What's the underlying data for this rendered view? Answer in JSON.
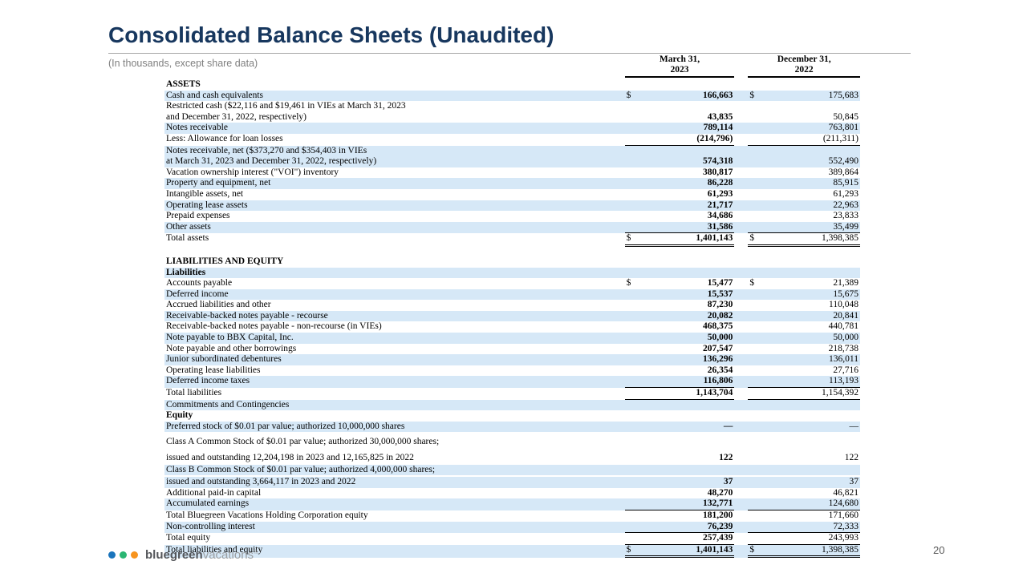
{
  "page": {
    "title": "Consolidated Balance Sheets (Unaudited)",
    "subtitle": "(In thousands, except share data)",
    "page_number": "20"
  },
  "columns": [
    {
      "line1": "March 31,",
      "line2": "2023"
    },
    {
      "line1": "December 31,",
      "line2": "2022"
    }
  ],
  "colors": {
    "title_accent": "#17375e",
    "row_shade": "#d6e8f7",
    "logo_dots": [
      "#1b75bc",
      "#2bb673",
      "#f7941e"
    ]
  },
  "footer": {
    "logo_text_bold": "bluegreen",
    "logo_text_light": "vacations",
    "logo_reg": "®"
  },
  "table": {
    "rows": [
      {
        "type": "sec",
        "label": "ASSETS",
        "shade": false
      },
      {
        "type": "row",
        "label": "Cash and cash equivalents",
        "v1": "166,663",
        "d1": true,
        "v2": "175,683",
        "d2": true,
        "shade": true
      },
      {
        "type": "cont",
        "label": "Restricted cash ($22,116 and $19,461 in VIEs at March 31, 2023",
        "shade": false
      },
      {
        "type": "row",
        "label": "and December 31, 2022, respectively)",
        "v1": "43,835",
        "v2": "50,845",
        "shade": false
      },
      {
        "type": "row",
        "label": "Notes receivable",
        "v1": "789,114",
        "v2": "763,801",
        "shade": true
      },
      {
        "type": "row",
        "label": "Less: Allowance for loan losses",
        "v1": "(214,796)",
        "v2": "(211,311)",
        "shade": false,
        "u": "s"
      },
      {
        "type": "cont",
        "label": "Notes receivable, net ($373,270 and $354,403 in VIEs",
        "shade": true
      },
      {
        "type": "row",
        "label": "at March 31, 2023 and December 31, 2022, respectively)",
        "v1": "574,318",
        "v2": "552,490",
        "shade": true
      },
      {
        "type": "row",
        "label": "Vacation ownership interest (\"VOI\") inventory",
        "v1": "380,817",
        "v2": "389,864",
        "shade": false
      },
      {
        "type": "row",
        "label": "Property and equipment, net",
        "v1": "86,228",
        "v2": "85,915",
        "shade": true
      },
      {
        "type": "row",
        "label": "Intangible assets, net",
        "v1": "61,293",
        "v2": "61,293",
        "shade": false
      },
      {
        "type": "row",
        "label": "Operating lease assets",
        "v1": "21,717",
        "v2": "22,963",
        "shade": true
      },
      {
        "type": "row",
        "label": "Prepaid expenses",
        "v1": "34,686",
        "v2": "23,833",
        "shade": false
      },
      {
        "type": "row",
        "label": "Other assets",
        "v1": "31,586",
        "v2": "35,499",
        "shade": true,
        "u": "s"
      },
      {
        "type": "row",
        "label": "Total assets",
        "v1": "1,401,143",
        "d1": true,
        "v2": "1,398,385",
        "d2": true,
        "shade": false,
        "u": "d"
      },
      {
        "type": "gap"
      },
      {
        "type": "sec",
        "label": "LIABILITIES AND EQUITY",
        "shade": false
      },
      {
        "type": "sec",
        "label": "Liabilities",
        "shade": true
      },
      {
        "type": "row",
        "label": "Accounts payable",
        "v1": "15,477",
        "d1": true,
        "v2": "21,389",
        "d2": true,
        "shade": false
      },
      {
        "type": "row",
        "label": "Deferred income",
        "v1": "15,537",
        "v2": "15,675",
        "shade": true
      },
      {
        "type": "row",
        "label": "Accrued liabilities and other",
        "v1": "87,230",
        "v2": "110,048",
        "shade": false
      },
      {
        "type": "row",
        "label": "Receivable-backed notes payable - recourse",
        "v1": "20,082",
        "v2": "20,841",
        "shade": true
      },
      {
        "type": "row",
        "label": "Receivable-backed notes payable - non-recourse (in VIEs)",
        "v1": "468,375",
        "v2": "440,781",
        "shade": false
      },
      {
        "type": "row",
        "label": "Note payable to BBX Capital, Inc.",
        "v1": "50,000",
        "v2": "50,000",
        "shade": true
      },
      {
        "type": "row",
        "label": "Note payable and other borrowings",
        "v1": "207,547",
        "v2": "218,738",
        "shade": false
      },
      {
        "type": "row",
        "label": "Junior subordinated debentures",
        "v1": "136,296",
        "v2": "136,011",
        "shade": true
      },
      {
        "type": "row",
        "label": "Operating lease liabilities",
        "v1": "26,354",
        "v2": "27,716",
        "shade": false
      },
      {
        "type": "row",
        "label": "Deferred income taxes",
        "v1": "116,806",
        "v2": "113,193",
        "shade": true,
        "u": "s"
      },
      {
        "type": "row",
        "label": "Total liabilities",
        "v1": "1,143,704",
        "v2": "1,154,392",
        "shade": false,
        "u": "s"
      },
      {
        "type": "row",
        "label": "Commitments and Contingencies",
        "shade": true
      },
      {
        "type": "sec",
        "label": "Equity",
        "shade": false
      },
      {
        "type": "row",
        "label": "Preferred stock of $0.01 par value; authorized 10,000,000 shares",
        "v1": "—",
        "v2": "—",
        "shade": true
      },
      {
        "type": "cont",
        "label": "Class A Common Stock of $0.01 par value; authorized 30,000,000 shares;",
        "shade": false,
        "mt": 6
      },
      {
        "type": "row",
        "label": "issued and outstanding 12,204,198 in 2023 and 12,165,825 in 2022",
        "v1": "122",
        "v2": "122",
        "shade": false,
        "mt": 6
      },
      {
        "type": "cont",
        "label": "Class B Common Stock of $0.01 par value; authorized 4,000,000 shares;",
        "shade": true,
        "mt": 1
      },
      {
        "type": "row",
        "label": "issued and outstanding 3,664,117 in 2023 and 2022",
        "v1": "37",
        "v2": "37",
        "shade": true,
        "mt": 2
      },
      {
        "type": "row",
        "label": "Additional paid-in capital",
        "v1": "48,270",
        "v2": "46,821",
        "shade": false
      },
      {
        "type": "row",
        "label": "Accumulated earnings",
        "v1": "132,771",
        "v2": "124,680",
        "shade": true,
        "u": "s"
      },
      {
        "type": "row",
        "label": "Total Bluegreen Vacations Holding Corporation equity",
        "v1": "181,200",
        "v2": "171,660",
        "shade": false
      },
      {
        "type": "row",
        "label": "Non-controlling interest",
        "v1": "76,239",
        "v2": "72,333",
        "shade": true,
        "u": "s"
      },
      {
        "type": "row",
        "label": "Total equity",
        "v1": "257,439",
        "v2": "243,993",
        "shade": false,
        "u": "s"
      },
      {
        "type": "row",
        "label": "Total liabilities and equity",
        "v1": "1,401,143",
        "d1": true,
        "v2": "1,398,385",
        "d2": true,
        "shade": true,
        "u": "d"
      }
    ]
  }
}
